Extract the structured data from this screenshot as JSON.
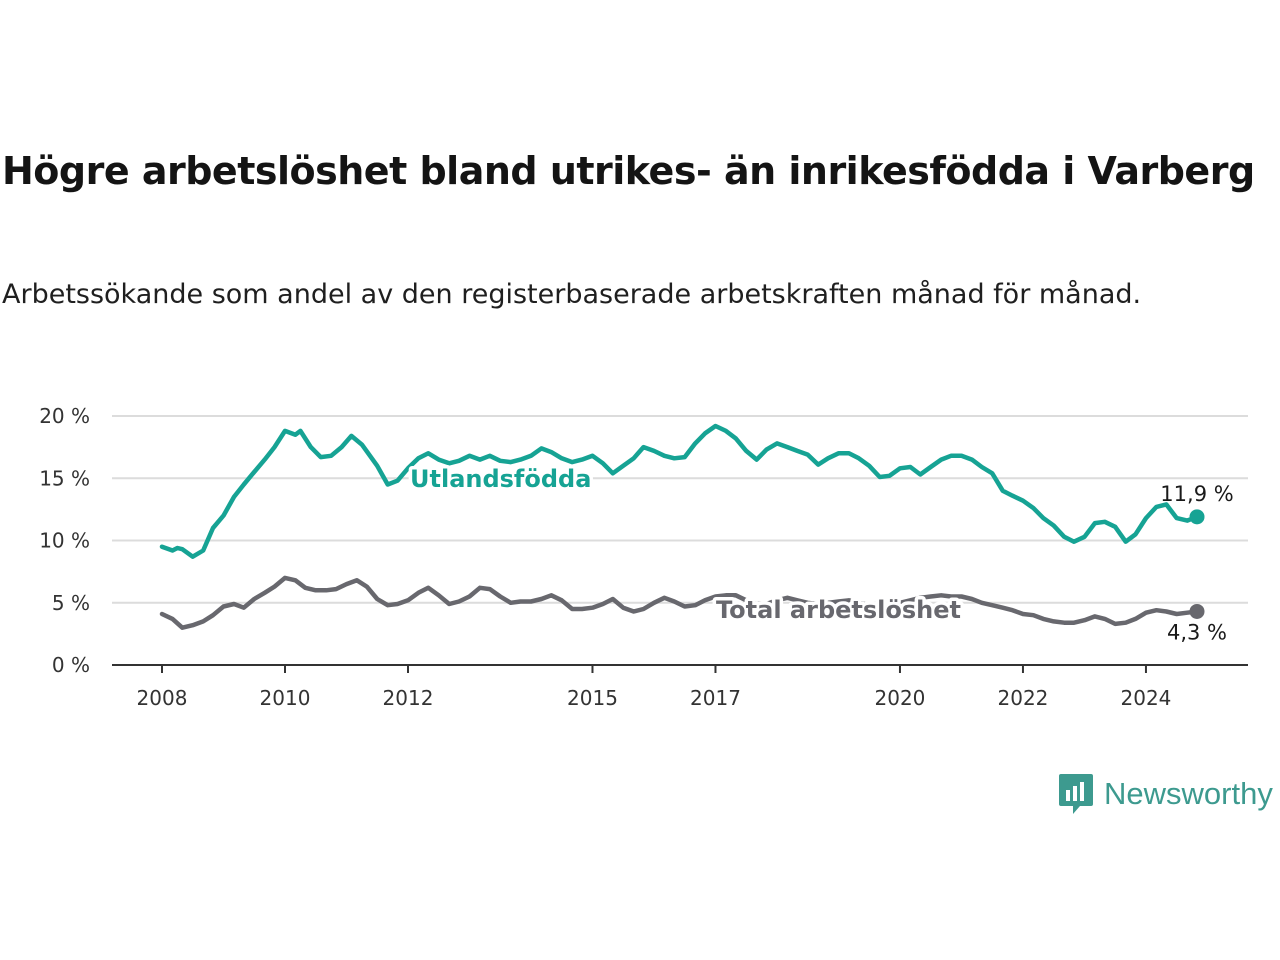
{
  "title": "Högre arbetslöshet bland utrikes- än inrikesfödda i Varberg",
  "subtitle": "Arbetssökande som andel av den registerbaserade arbetskraften månad för månad.",
  "brand": {
    "name": "Newsworthy",
    "color": "#3d9a8f",
    "icon": "newsworthy-logo-icon"
  },
  "chart_data": {
    "type": "line",
    "title": "Högre arbetslöshet bland utrikes- än inrikesfödda i Varberg",
    "subtitle": "Arbetssökande som andel av den registerbaserade arbetskraften månad för månad.",
    "xlabel": "",
    "ylabel": "",
    "x_range": [
      2008.0,
      2024.83
    ],
    "x_ticks": [
      {
        "value": 2008,
        "label": "2008"
      },
      {
        "value": 2010,
        "label": "2010"
      },
      {
        "value": 2012,
        "label": "2012"
      },
      {
        "value": 2015,
        "label": "2015"
      },
      {
        "value": 2017,
        "label": "2017"
      },
      {
        "value": 2020,
        "label": "2020"
      },
      {
        "value": 2022,
        "label": "2022"
      },
      {
        "value": 2024,
        "label": "2024"
      }
    ],
    "ylim": [
      0,
      20
    ],
    "y_ticks": [
      {
        "value": 0,
        "label": "0 %"
      },
      {
        "value": 5,
        "label": "5 %"
      },
      {
        "value": 10,
        "label": "10 %"
      },
      {
        "value": 15,
        "label": "15 %"
      },
      {
        "value": 20,
        "label": "20 %"
      }
    ],
    "grid": "horizontal",
    "legend": "inline labels",
    "series": [
      {
        "name": "Utlandsfödda",
        "color": "#16a394",
        "end_label": "11,9 %",
        "points": [
          [
            2008.0,
            9.5
          ],
          [
            2008.17,
            9.2
          ],
          [
            2008.25,
            9.4
          ],
          [
            2008.33,
            9.3
          ],
          [
            2008.5,
            8.7
          ],
          [
            2008.67,
            9.2
          ],
          [
            2008.83,
            11.0
          ],
          [
            2009.0,
            12.0
          ],
          [
            2009.17,
            13.5
          ],
          [
            2009.33,
            14.5
          ],
          [
            2009.5,
            15.5
          ],
          [
            2009.67,
            16.5
          ],
          [
            2009.83,
            17.5
          ],
          [
            2010.0,
            18.8
          ],
          [
            2010.17,
            18.5
          ],
          [
            2010.25,
            18.8
          ],
          [
            2010.42,
            17.5
          ],
          [
            2010.58,
            16.7
          ],
          [
            2010.75,
            16.8
          ],
          [
            2010.92,
            17.5
          ],
          [
            2011.08,
            18.4
          ],
          [
            2011.25,
            17.7
          ],
          [
            2011.5,
            16.0
          ],
          [
            2011.67,
            14.5
          ],
          [
            2011.83,
            14.8
          ],
          [
            2012.0,
            15.8
          ],
          [
            2012.17,
            16.6
          ],
          [
            2012.33,
            17.0
          ],
          [
            2012.5,
            16.5
          ],
          [
            2012.67,
            16.2
          ],
          [
            2012.83,
            16.4
          ],
          [
            2013.0,
            16.8
          ],
          [
            2013.17,
            16.5
          ],
          [
            2013.33,
            16.8
          ],
          [
            2013.5,
            16.4
          ],
          [
            2013.67,
            16.3
          ],
          [
            2013.83,
            16.5
          ],
          [
            2014.0,
            16.8
          ],
          [
            2014.17,
            17.4
          ],
          [
            2014.33,
            17.1
          ],
          [
            2014.5,
            16.6
          ],
          [
            2014.67,
            16.3
          ],
          [
            2014.83,
            16.5
          ],
          [
            2015.0,
            16.8
          ],
          [
            2015.17,
            16.2
          ],
          [
            2015.33,
            15.4
          ],
          [
            2015.5,
            16.0
          ],
          [
            2015.67,
            16.6
          ],
          [
            2015.83,
            17.5
          ],
          [
            2016.0,
            17.2
          ],
          [
            2016.17,
            16.8
          ],
          [
            2016.33,
            16.6
          ],
          [
            2016.5,
            16.7
          ],
          [
            2016.67,
            17.8
          ],
          [
            2016.83,
            18.6
          ],
          [
            2017.0,
            19.2
          ],
          [
            2017.17,
            18.8
          ],
          [
            2017.33,
            18.2
          ],
          [
            2017.5,
            17.2
          ],
          [
            2017.67,
            16.5
          ],
          [
            2017.83,
            17.3
          ],
          [
            2018.0,
            17.8
          ],
          [
            2018.17,
            17.5
          ],
          [
            2018.33,
            17.2
          ],
          [
            2018.5,
            16.9
          ],
          [
            2018.67,
            16.1
          ],
          [
            2018.83,
            16.6
          ],
          [
            2019.0,
            17.0
          ],
          [
            2019.17,
            17.0
          ],
          [
            2019.33,
            16.6
          ],
          [
            2019.5,
            16.0
          ],
          [
            2019.67,
            15.1
          ],
          [
            2019.83,
            15.2
          ],
          [
            2020.0,
            15.8
          ],
          [
            2020.17,
            15.9
          ],
          [
            2020.33,
            15.3
          ],
          [
            2020.5,
            15.9
          ],
          [
            2020.67,
            16.5
          ],
          [
            2020.83,
            16.8
          ],
          [
            2021.0,
            16.8
          ],
          [
            2021.17,
            16.5
          ],
          [
            2021.33,
            15.9
          ],
          [
            2021.5,
            15.4
          ],
          [
            2021.67,
            14.0
          ],
          [
            2021.83,
            13.6
          ],
          [
            2022.0,
            13.2
          ],
          [
            2022.17,
            12.6
          ],
          [
            2022.33,
            11.8
          ],
          [
            2022.5,
            11.2
          ],
          [
            2022.67,
            10.3
          ],
          [
            2022.83,
            9.9
          ],
          [
            2023.0,
            10.3
          ],
          [
            2023.17,
            11.4
          ],
          [
            2023.33,
            11.5
          ],
          [
            2023.5,
            11.1
          ],
          [
            2023.67,
            9.9
          ],
          [
            2023.83,
            10.5
          ],
          [
            2024.0,
            11.8
          ],
          [
            2024.17,
            12.7
          ],
          [
            2024.33,
            12.9
          ],
          [
            2024.5,
            11.8
          ],
          [
            2024.67,
            11.6
          ],
          [
            2024.83,
            11.9
          ]
        ]
      },
      {
        "name": "Total arbetslöshet",
        "color": "#68686e",
        "end_label": "4,3 %",
        "points": [
          [
            2008.0,
            4.1
          ],
          [
            2008.17,
            3.7
          ],
          [
            2008.33,
            3.0
          ],
          [
            2008.5,
            3.2
          ],
          [
            2008.67,
            3.5
          ],
          [
            2008.83,
            4.0
          ],
          [
            2009.0,
            4.7
          ],
          [
            2009.17,
            4.9
          ],
          [
            2009.33,
            4.6
          ],
          [
            2009.5,
            5.3
          ],
          [
            2009.67,
            5.8
          ],
          [
            2009.83,
            6.3
          ],
          [
            2010.0,
            7.0
          ],
          [
            2010.17,
            6.8
          ],
          [
            2010.33,
            6.2
          ],
          [
            2010.5,
            6.0
          ],
          [
            2010.67,
            6.0
          ],
          [
            2010.83,
            6.1
          ],
          [
            2011.0,
            6.5
          ],
          [
            2011.17,
            6.8
          ],
          [
            2011.33,
            6.3
          ],
          [
            2011.5,
            5.3
          ],
          [
            2011.67,
            4.8
          ],
          [
            2011.83,
            4.9
          ],
          [
            2012.0,
            5.2
          ],
          [
            2012.17,
            5.8
          ],
          [
            2012.33,
            6.2
          ],
          [
            2012.5,
            5.6
          ],
          [
            2012.67,
            4.9
          ],
          [
            2012.83,
            5.1
          ],
          [
            2013.0,
            5.5
          ],
          [
            2013.17,
            6.2
          ],
          [
            2013.33,
            6.1
          ],
          [
            2013.5,
            5.5
          ],
          [
            2013.67,
            5.0
          ],
          [
            2013.83,
            5.1
          ],
          [
            2014.0,
            5.1
          ],
          [
            2014.17,
            5.3
          ],
          [
            2014.33,
            5.6
          ],
          [
            2014.5,
            5.2
          ],
          [
            2014.67,
            4.5
          ],
          [
            2014.83,
            4.5
          ],
          [
            2015.0,
            4.6
          ],
          [
            2015.17,
            4.9
          ],
          [
            2015.33,
            5.3
          ],
          [
            2015.5,
            4.6
          ],
          [
            2015.67,
            4.3
          ],
          [
            2015.83,
            4.5
          ],
          [
            2016.0,
            5.0
          ],
          [
            2016.17,
            5.4
          ],
          [
            2016.33,
            5.1
          ],
          [
            2016.5,
            4.7
          ],
          [
            2016.67,
            4.8
          ],
          [
            2016.83,
            5.2
          ],
          [
            2017.0,
            5.5
          ],
          [
            2017.17,
            5.6
          ],
          [
            2017.33,
            5.6
          ],
          [
            2017.5,
            5.2
          ],
          [
            2017.67,
            4.9
          ],
          [
            2017.83,
            4.9
          ],
          [
            2018.0,
            5.2
          ],
          [
            2018.17,
            5.4
          ],
          [
            2018.33,
            5.2
          ],
          [
            2018.5,
            5.0
          ],
          [
            2018.67,
            4.9
          ],
          [
            2018.83,
            5.0
          ],
          [
            2019.0,
            5.1
          ],
          [
            2019.17,
            5.2
          ],
          [
            2019.33,
            5.0
          ],
          [
            2019.5,
            4.8
          ],
          [
            2019.67,
            4.7
          ],
          [
            2019.83,
            4.8
          ],
          [
            2020.0,
            5.0
          ],
          [
            2020.17,
            5.2
          ],
          [
            2020.33,
            5.4
          ],
          [
            2020.5,
            5.5
          ],
          [
            2020.67,
            5.6
          ],
          [
            2020.83,
            5.5
          ],
          [
            2021.0,
            5.5
          ],
          [
            2021.17,
            5.3
          ],
          [
            2021.33,
            5.0
          ],
          [
            2021.5,
            4.8
          ],
          [
            2021.67,
            4.6
          ],
          [
            2021.83,
            4.4
          ],
          [
            2022.0,
            4.1
          ],
          [
            2022.17,
            4.0
          ],
          [
            2022.33,
            3.7
          ],
          [
            2022.5,
            3.5
          ],
          [
            2022.67,
            3.4
          ],
          [
            2022.83,
            3.4
          ],
          [
            2023.0,
            3.6
          ],
          [
            2023.17,
            3.9
          ],
          [
            2023.33,
            3.7
          ],
          [
            2023.5,
            3.3
          ],
          [
            2023.67,
            3.4
          ],
          [
            2023.83,
            3.7
          ],
          [
            2024.0,
            4.2
          ],
          [
            2024.17,
            4.4
          ],
          [
            2024.33,
            4.3
          ],
          [
            2024.5,
            4.1
          ],
          [
            2024.67,
            4.2
          ],
          [
            2024.83,
            4.3
          ]
        ]
      }
    ]
  }
}
